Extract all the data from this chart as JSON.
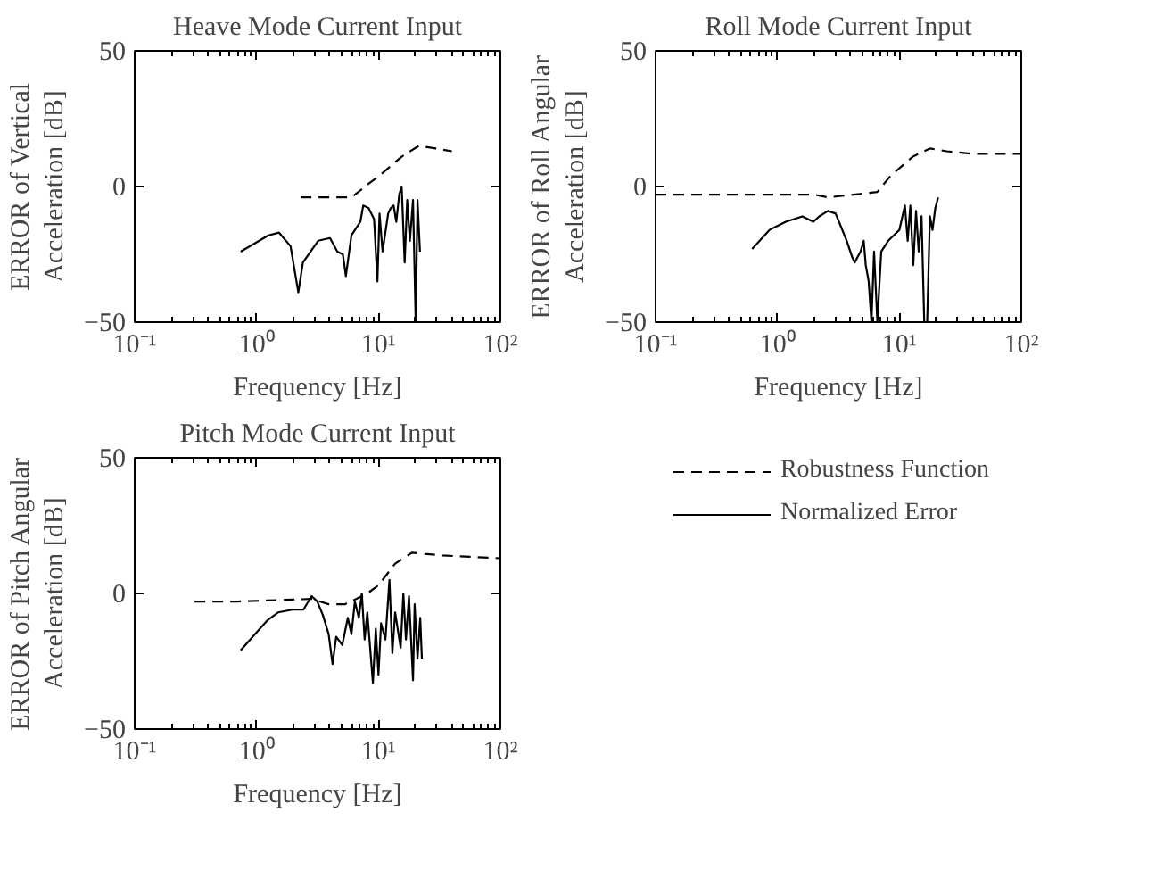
{
  "chart_data": [
    {
      "type": "line",
      "title": "Heave Mode Current Input",
      "xlabel": "Frequency [Hz]",
      "ylabel": "ERROR of Vertical\nAcceleration [dB]",
      "log": "x",
      "grid": false,
      "legend": false,
      "xlim": [
        0.1,
        100
      ],
      "ylim": [
        -50,
        50
      ],
      "xticks": [
        {
          "value": 0.1,
          "label": "10⁻¹"
        },
        {
          "value": 1,
          "label": "10⁰"
        },
        {
          "value": 10,
          "label": "10¹"
        },
        {
          "value": 100,
          "label": "10²"
        }
      ],
      "yticks": [
        -50,
        0,
        50
      ],
      "series": [
        {
          "color": "#000000",
          "line_style": "dashed",
          "x": [
            2.3,
            6.0,
            8.3,
            10.2,
            15.5,
            21.4,
            29.5,
            40
          ],
          "values": [
            -4,
            -4,
            1,
            4,
            11,
            15,
            14,
            13
          ]
        },
        {
          "color": "#000000",
          "line_style": "solid",
          "x": [
            0.74,
            1.25,
            1.53,
            1.9,
            2.2,
            2.4,
            3.2,
            4.0,
            4.6,
            5.1,
            5.4,
            6.0,
            7.1,
            7.5,
            8.3,
            9.2,
            9.8,
            10.2,
            10.8,
            12,
            12.6,
            13.3,
            14,
            14.8,
            15.5,
            16.4,
            17.2,
            18.1,
            19.2,
            20.2,
            20.9,
            21.9
          ],
          "values": [
            -24,
            -18,
            -17,
            -22,
            -39,
            -28,
            -20,
            -19,
            -24,
            -25,
            -33,
            -18,
            -13,
            -7,
            -8,
            -12,
            -35,
            -10,
            -24,
            -10,
            -8,
            -7,
            -13,
            -3,
            0,
            -28,
            -5,
            -20,
            -5,
            -50,
            -5,
            -24
          ]
        }
      ]
    },
    {
      "type": "line",
      "title": "Roll Mode Current Input",
      "xlabel": "Frequency [Hz]",
      "ylabel": "ERROR of Roll Angular\nAcceleration [dB]",
      "log": "x",
      "grid": false,
      "legend": false,
      "xlim": [
        0.1,
        100
      ],
      "ylim": [
        -50,
        50
      ],
      "xticks": [
        {
          "value": 0.1,
          "label": "10⁻¹"
        },
        {
          "value": 1,
          "label": "10⁰"
        },
        {
          "value": 10,
          "label": "10¹"
        },
        {
          "value": 100,
          "label": "10²"
        }
      ],
      "yticks": [
        -50,
        0,
        50
      ],
      "series": [
        {
          "color": "#000000",
          "line_style": "dashed",
          "x": [
            0.1,
            1.0,
            2.0,
            2.6,
            6.6,
            8.5,
            12.9,
            17.8,
            24.5,
            41,
            100
          ],
          "values": [
            -3,
            -3,
            -3,
            -4,
            -2,
            4,
            11,
            14,
            13,
            12,
            12
          ]
        },
        {
          "color": "#000000",
          "line_style": "solid",
          "x": [
            0.62,
            0.86,
            1.17,
            1.6,
            1.97,
            2.2,
            2.6,
            3.0,
            3.7,
            4.1,
            4.3,
            4.8,
            5.1,
            5.3,
            5.6,
            5.9,
            6.2,
            6.6,
            7.1,
            8.1,
            9.0,
            10,
            11.1,
            11.7,
            12.3,
            13,
            13.7,
            14.4,
            15.2,
            16,
            16.9,
            17.8,
            18.7,
            19.7,
            20.8
          ],
          "values": [
            -23,
            -16,
            -13,
            -11,
            -13,
            -11,
            -9,
            -10,
            -20,
            -26,
            -28,
            -24,
            -20,
            -29,
            -35,
            -50,
            -24,
            -50,
            -24,
            -20,
            -18,
            -16,
            -7,
            -20,
            -7,
            -29,
            -9,
            -24,
            -11,
            -50,
            -50,
            -11,
            -16,
            -8,
            -4
          ]
        }
      ]
    },
    {
      "type": "line",
      "title": "Pitch Mode Current Input",
      "xlabel": "Frequency [Hz]",
      "ylabel": "ERROR of Pitch Angular\nAcceleration [dB]",
      "log": "x",
      "grid": false,
      "legend": "right",
      "xlim": [
        0.1,
        100
      ],
      "ylim": [
        -50,
        50
      ],
      "xticks": [
        {
          "value": 0.1,
          "label": "10⁻¹"
        },
        {
          "value": 1,
          "label": "10⁰"
        },
        {
          "value": 10,
          "label": "10¹"
        },
        {
          "value": 100,
          "label": "10²"
        }
      ],
      "yticks": [
        -50,
        0,
        50
      ],
      "series": [
        {
          "name": "Robustness Function",
          "color": "#000000",
          "line_style": "dashed",
          "x": [
            0.31,
            0.69,
            2.83,
            3.9,
            5.3,
            6.6,
            8.1,
            10,
            13.7,
            18.8,
            33.5,
            100
          ],
          "values": [
            -3,
            -3,
            -2,
            -4,
            -4,
            -2,
            0,
            3,
            11,
            15,
            14,
            13
          ]
        },
        {
          "name": "Normalized Error",
          "color": "#000000",
          "line_style": "solid",
          "x": [
            0.74,
            1.22,
            1.5,
            1.96,
            2.42,
            2.83,
            3.15,
            3.5,
            3.9,
            4.2,
            4.5,
            5.05,
            5.6,
            6.0,
            6.4,
            6.9,
            7.3,
            7.7,
            8.1,
            9.0,
            9.5,
            10,
            10.5,
            11.4,
            12.3,
            13,
            13.7,
            15.2,
            16,
            16.8,
            17.8,
            19.2,
            19.8,
            20.9,
            22,
            22.7
          ],
          "values": [
            -21,
            -10,
            -7,
            -6,
            -6,
            -1,
            -3,
            -8,
            -15,
            -26,
            -16,
            -19,
            -9,
            -15,
            -3,
            -9,
            0,
            -17,
            -7,
            -33,
            -13,
            -30,
            -11,
            -17,
            5,
            -22,
            -7,
            -20,
            0,
            -17,
            -1,
            -32,
            -4,
            -24,
            -9,
            -24
          ]
        }
      ]
    }
  ]
}
